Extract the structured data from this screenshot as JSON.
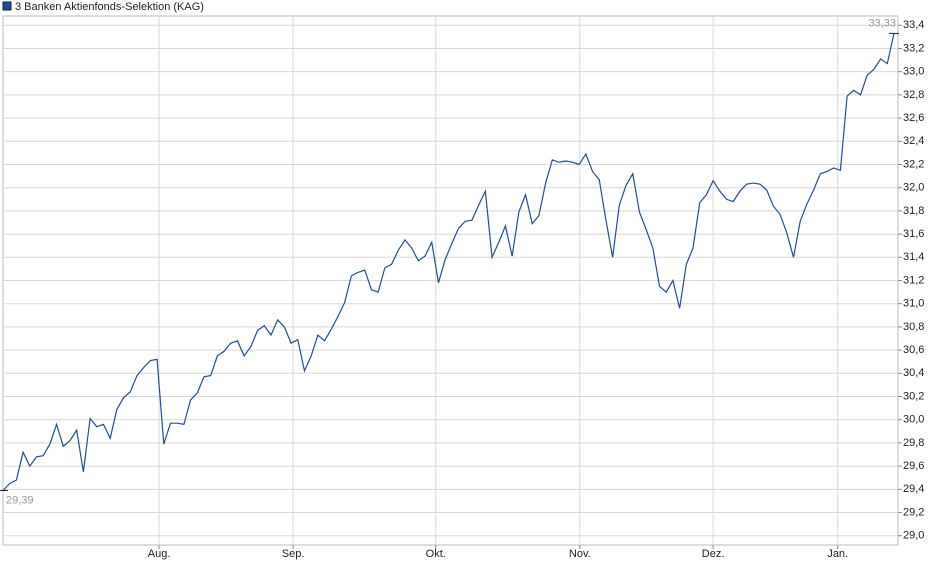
{
  "chart_data": {
    "type": "line",
    "series": [
      {
        "name": "3 Banken Aktienfonds-Selektion (KAG)",
        "color": "#1f4e9c",
        "values": [
          29.39,
          29.45,
          29.48,
          29.72,
          29.6,
          29.68,
          29.69,
          29.79,
          29.96,
          29.77,
          29.82,
          29.91,
          29.55,
          30.01,
          29.94,
          29.96,
          29.84,
          30.09,
          30.19,
          30.24,
          30.38,
          30.45,
          30.51,
          30.52,
          29.79,
          29.97,
          29.97,
          29.96,
          30.17,
          30.23,
          30.37,
          30.38,
          30.55,
          30.59,
          30.66,
          30.68,
          30.55,
          30.63,
          30.77,
          30.81,
          30.73,
          30.86,
          30.8,
          30.66,
          30.69,
          30.42,
          30.55,
          30.73,
          30.68,
          30.78,
          30.89,
          31.01,
          31.24,
          31.27,
          31.29,
          31.12,
          31.1,
          31.31,
          31.34,
          31.46,
          31.55,
          31.48,
          31.37,
          31.41,
          31.53,
          31.18,
          31.38,
          31.52,
          31.65,
          31.71,
          31.72,
          31.85,
          31.97,
          31.4,
          31.53,
          31.67,
          31.41,
          31.79,
          31.94,
          31.69,
          31.76,
          32.04,
          32.24,
          32.22,
          32.23,
          32.22,
          32.2,
          32.29,
          32.14,
          32.07,
          31.72,
          31.4,
          31.85,
          32.02,
          32.12,
          31.79,
          31.64,
          31.48,
          31.15,
          31.1,
          31.2,
          30.96,
          31.34,
          31.48,
          31.87,
          31.94,
          32.06,
          31.97,
          31.9,
          31.88,
          31.97,
          32.03,
          32.04,
          32.03,
          31.98,
          31.84,
          31.77,
          31.61,
          31.4,
          31.71,
          31.86,
          31.98,
          32.12,
          32.14,
          32.17,
          32.15,
          32.79,
          32.84,
          32.8,
          32.97,
          33.02,
          33.11,
          33.07,
          33.33
        ],
        "value_labels": [
          "29,39",
          null,
          null,
          null,
          null,
          null,
          null,
          null,
          null,
          null,
          null,
          null,
          null,
          null,
          null,
          null,
          null,
          null,
          null,
          null,
          null,
          null,
          null,
          null,
          null,
          null,
          null,
          null,
          null,
          null,
          null,
          null,
          null,
          null,
          null,
          null,
          null,
          null,
          null,
          null,
          null,
          null,
          null,
          null,
          null,
          null,
          null,
          null,
          null,
          null,
          null,
          null,
          null,
          null,
          null,
          null,
          null,
          null,
          null,
          null,
          null,
          null,
          null,
          null,
          null,
          null,
          null,
          null,
          null,
          null,
          null,
          null,
          null,
          null,
          null,
          null,
          null,
          null,
          null,
          null,
          null,
          null,
          null,
          null,
          null,
          null,
          null,
          null,
          null,
          null,
          null,
          null,
          null,
          null,
          null,
          null,
          null,
          null,
          null,
          null,
          null,
          null,
          null,
          null,
          null,
          null,
          null,
          null,
          null,
          null,
          null,
          null,
          null,
          null,
          null,
          null,
          null,
          null,
          null,
          null,
          null,
          null,
          null,
          null,
          null,
          null,
          null,
          null,
          null,
          null,
          null,
          null,
          null,
          "33,33"
        ]
      }
    ],
    "xlim": [
      0,
      133
    ],
    "xticks": [
      {
        "value": 23.3,
        "label": "Aug."
      },
      {
        "value": 43.3,
        "label": "Sep."
      },
      {
        "value": 64.6,
        "label": "Okt."
      },
      {
        "value": 86.1,
        "label": "Nov."
      },
      {
        "value": 106.0,
        "label": "Dez."
      },
      {
        "value": 124.6,
        "label": "Jan."
      }
    ],
    "ylim": [
      28.92,
      33.48
    ],
    "yticks": [
      {
        "value": 29.0,
        "label": "29,0"
      },
      {
        "value": 29.2,
        "label": "29,2"
      },
      {
        "value": 29.4,
        "label": "29,4"
      },
      {
        "value": 29.6,
        "label": "29,6"
      },
      {
        "value": 29.8,
        "label": "29,8"
      },
      {
        "value": 30.0,
        "label": "30,0"
      },
      {
        "value": 30.2,
        "label": "30,2"
      },
      {
        "value": 30.4,
        "label": "30,4"
      },
      {
        "value": 30.6,
        "label": "30,6"
      },
      {
        "value": 30.8,
        "label": "30,8"
      },
      {
        "value": 31.0,
        "label": "31,0"
      },
      {
        "value": 31.2,
        "label": "31,2"
      },
      {
        "value": 31.4,
        "label": "31,4"
      },
      {
        "value": 31.6,
        "label": "31,6"
      },
      {
        "value": 31.8,
        "label": "31,8"
      },
      {
        "value": 32.0,
        "label": "32,0"
      },
      {
        "value": 32.2,
        "label": "32,2"
      },
      {
        "value": 32.4,
        "label": "32,4"
      },
      {
        "value": 32.6,
        "label": "32,6"
      },
      {
        "value": 32.8,
        "label": "32,8"
      },
      {
        "value": 33.0,
        "label": "33,0"
      },
      {
        "value": 33.2,
        "label": "33,2"
      },
      {
        "value": 33.4,
        "label": "33,4"
      }
    ],
    "grid": true,
    "legend": "top-left"
  }
}
